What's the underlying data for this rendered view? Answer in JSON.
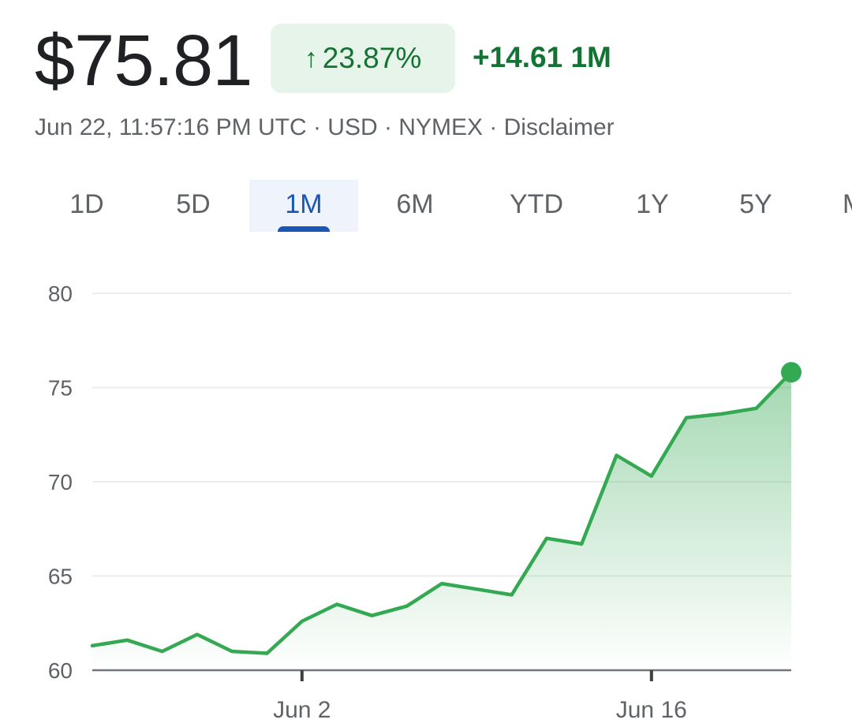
{
  "header": {
    "price": "$75.81",
    "percent_change": "23.87%",
    "percent_arrow_icon": "arrow-up-icon",
    "absolute_change": "+14.61",
    "period": "1M",
    "meta": "Jun 22, 11:57:16 PM UTC · USD · NYMEX · Disclaimer"
  },
  "tabs": [
    {
      "label": "1D"
    },
    {
      "label": "5D"
    },
    {
      "label": "1M",
      "active": true
    },
    {
      "label": "6M"
    },
    {
      "label": "YTD"
    },
    {
      "label": "1Y"
    },
    {
      "label": "5Y"
    },
    {
      "label": "M"
    }
  ],
  "colors": {
    "positive": "#137333",
    "line": "#34a853",
    "tab_active": "#1a56b8",
    "pill_bg": "#e6f4ea"
  },
  "chart_data": {
    "type": "area",
    "ylim": [
      60,
      80
    ],
    "yticks": [
      60,
      65,
      70,
      75,
      80
    ],
    "grid": true,
    "xtick_labels": [
      {
        "label": "Jun 2",
        "index": 6
      },
      {
        "label": "Jun 16",
        "index": 16
      }
    ],
    "series": [
      {
        "values": [
          61.3,
          61.6,
          61.0,
          61.9,
          61.0,
          60.9,
          62.6,
          63.5,
          62.9,
          63.4,
          64.6,
          64.3,
          64.0,
          67.0,
          66.7,
          71.4,
          70.3,
          73.4,
          73.6,
          73.9,
          75.81
        ]
      }
    ]
  }
}
